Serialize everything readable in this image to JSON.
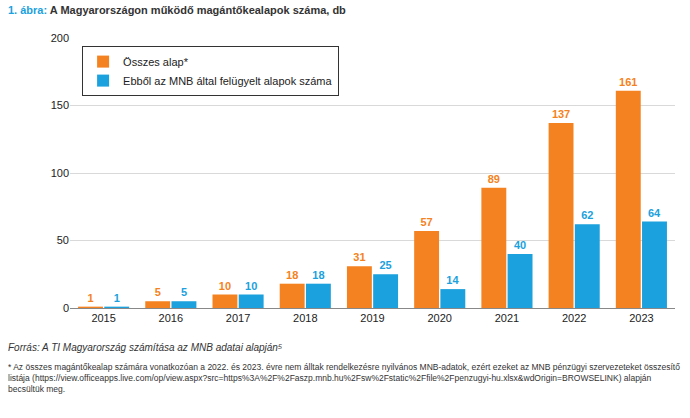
{
  "chart_data": {
    "type": "bar",
    "title": "1. ábra: A Magyarországon működő magántőkealapok száma, db",
    "categories": [
      "2015",
      "2016",
      "2017",
      "2018",
      "2019",
      "2020",
      "2021",
      "2022",
      "2023"
    ],
    "series": [
      {
        "name": "Összes alap*",
        "color": "#f58220",
        "values": [
          1,
          5,
          10,
          18,
          31,
          57,
          89,
          137,
          161
        ]
      },
      {
        "name": "Ebből az MNB által felügyelt alapok száma",
        "color": "#1ba1dd",
        "values": [
          1,
          5,
          10,
          18,
          25,
          14,
          40,
          62,
          64
        ]
      }
    ],
    "ylim": [
      0,
      200
    ],
    "yticks": [
      0,
      50,
      100,
      150,
      200
    ],
    "grid": true,
    "legend": "top left",
    "data_labels": true,
    "annotations": [
      "Forrás: A TI Magyarország számítása az MNB adatai alapján⁵",
      "* Az összes magántőkealap számára vonatkozóan a 2022. és 2023. évre nem álltak rendelkezésre nyilvános MNB-adatok, ezért ezeket az MNB pénzügyi szervezeteket összesítő listája (https://view.officeapps.live.com/op/view.aspx?src=https%3A%2F%2Faszp.mnb.hu%2Fsw%2Fstatic%2Ffile%2Fpenzugyi-hu.xlsx&wdOrigin=BROWSELINK) alapján becsültük meg."
    ]
  }
}
